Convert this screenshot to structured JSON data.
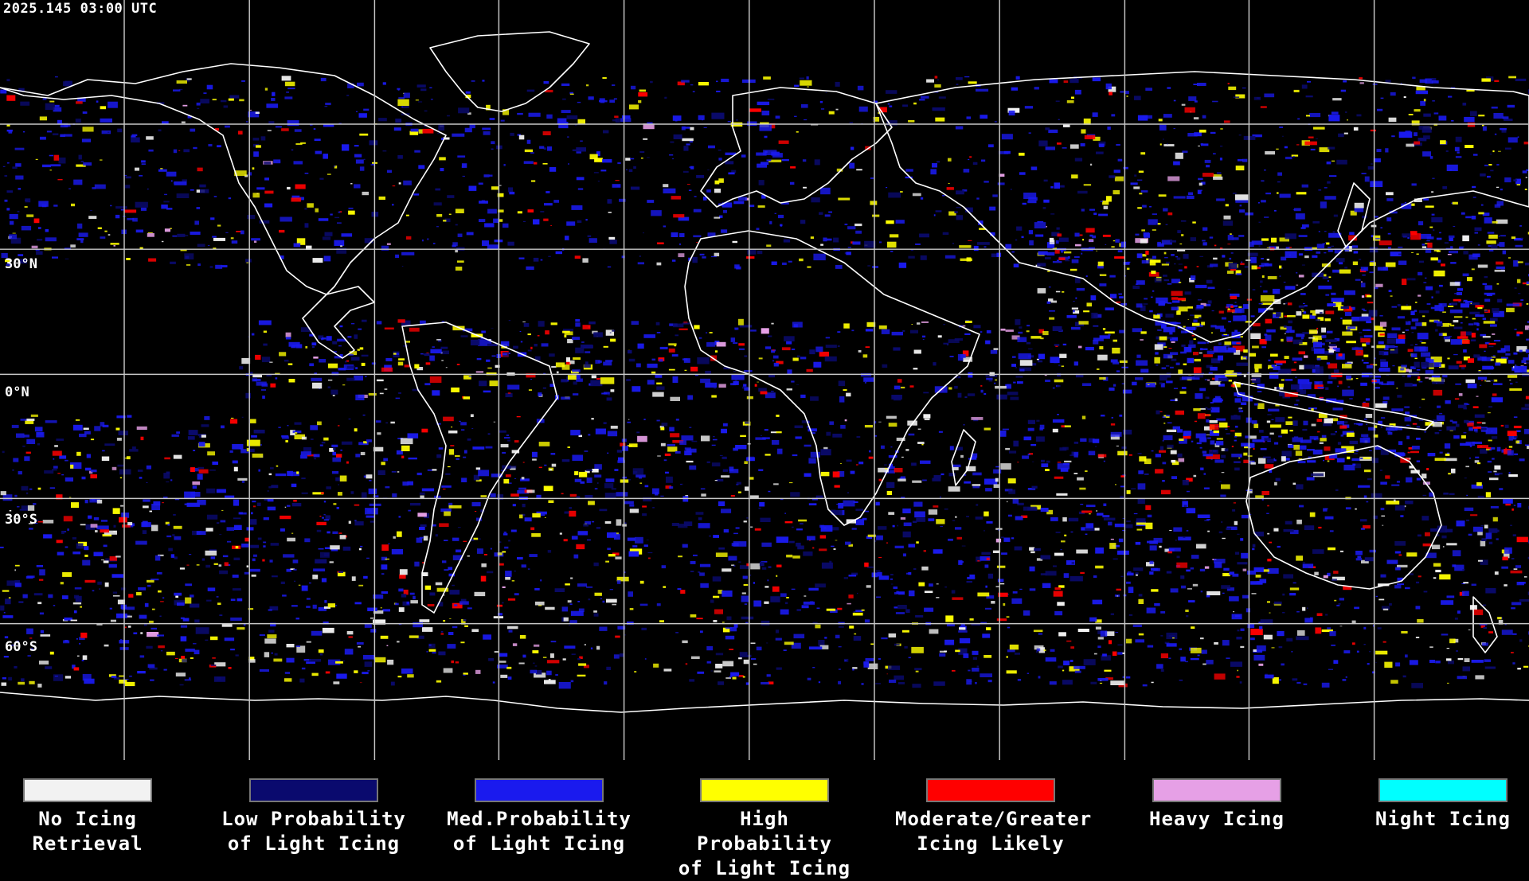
{
  "header": {
    "timestamp": "2025.145 03:00 UTC"
  },
  "map": {
    "projection": "equirectangular",
    "gridlines": true,
    "lat_labels": [
      "30°N",
      "0°N",
      "30°S",
      "60°S"
    ],
    "background": "#000000",
    "coastline_color": "#ffffff",
    "grid_color": "#c8c8c8"
  },
  "legend": {
    "items": [
      {
        "label": "No Icing\nRetrieval",
        "color": "#f2f2f2"
      },
      {
        "label": "Low Probability\nof Light Icing",
        "color": "#0a0a6e"
      },
      {
        "label": "Med.Probability\nof Light Icing",
        "color": "#1a1aee"
      },
      {
        "label": "High Probability\nof Light Icing",
        "color": "#ffff00"
      },
      {
        "label": "Moderate/Greater\nIcing Likely",
        "color": "#ff0000"
      },
      {
        "label": "Heavy Icing",
        "color": "#e6a0e6"
      },
      {
        "label": "Night Icing",
        "color": "#00ffff"
      }
    ]
  }
}
